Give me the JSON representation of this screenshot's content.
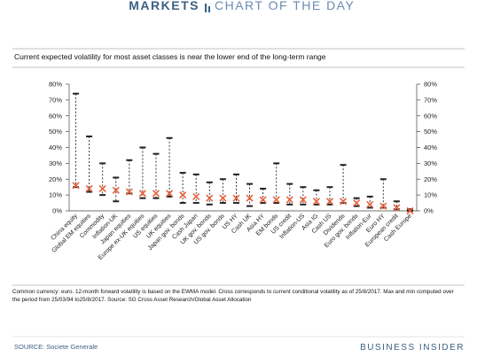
{
  "header": {
    "brand": "MARKETS",
    "tagline": "CHART OF THE DAY"
  },
  "chart_data": {
    "type": "range",
    "title": "Current expected volatility for most asset classes is near the lower end of the long-term range",
    "categories": [
      "China equity",
      "Global EM equities",
      "Commodity",
      "Inflation-UK",
      "Japan equities",
      "Europe ex-UK equities",
      "US equities",
      "UK equities",
      "Japan gov. bonds",
      "Cash Japan",
      "UK gov. bonds",
      "US gov. bonds",
      "US HY",
      "Cash UK",
      "Asia HY",
      "EM bonds",
      "US credit",
      "Inflation-US",
      "Asia IG",
      "Cash US",
      "Dividends",
      "Euro gov. bonds",
      "Inflation-Eur",
      "Euro HY",
      "European credit",
      "Cash Europe"
    ],
    "high": [
      74,
      47,
      30,
      21,
      32,
      40,
      36,
      46,
      24,
      23,
      18,
      20,
      23,
      17,
      14,
      30,
      17,
      15,
      13,
      15,
      29,
      8,
      9,
      20,
      6,
      1
    ],
    "low": [
      15,
      12,
      10,
      6,
      11,
      8,
      8,
      9,
      5,
      5,
      4,
      5,
      5,
      3,
      5,
      5,
      4,
      4,
      4,
      4,
      5,
      3,
      2,
      2,
      1,
      0
    ],
    "current": [
      16,
      14,
      14,
      13,
      12,
      11,
      11,
      11,
      10,
      9,
      8,
      8,
      8,
      8,
      7,
      7,
      7,
      7,
      6,
      6,
      6,
      5,
      4,
      3,
      2,
      0
    ],
    "range_color": "#222222",
    "current_color": "#e8603c",
    "ylim": [
      0,
      80
    ],
    "yticks": [
      {
        "value": 0,
        "label": "0%"
      },
      {
        "value": 10,
        "label": "10%"
      },
      {
        "value": 20,
        "label": "20%"
      },
      {
        "value": 30,
        "label": "30%"
      },
      {
        "value": 40,
        "label": "40%"
      },
      {
        "value": 50,
        "label": "50%"
      },
      {
        "value": 60,
        "label": "60%"
      },
      {
        "value": 70,
        "label": "70%"
      },
      {
        "value": 80,
        "label": "80%"
      }
    ],
    "note": "Common currency: euro. 12-month forward volatility is based on the EWMA model. Cross corresponds to current conditional volatility as of 25/8/2017. Max and min computed over the period from 25/03/94 to25/8/2017. Source: SG Cross Asset Research/Global Asset Allocation",
    "source": "SOURCE: Societe Generale"
  },
  "footer": {
    "brand": "BUSINESS INSIDER"
  }
}
